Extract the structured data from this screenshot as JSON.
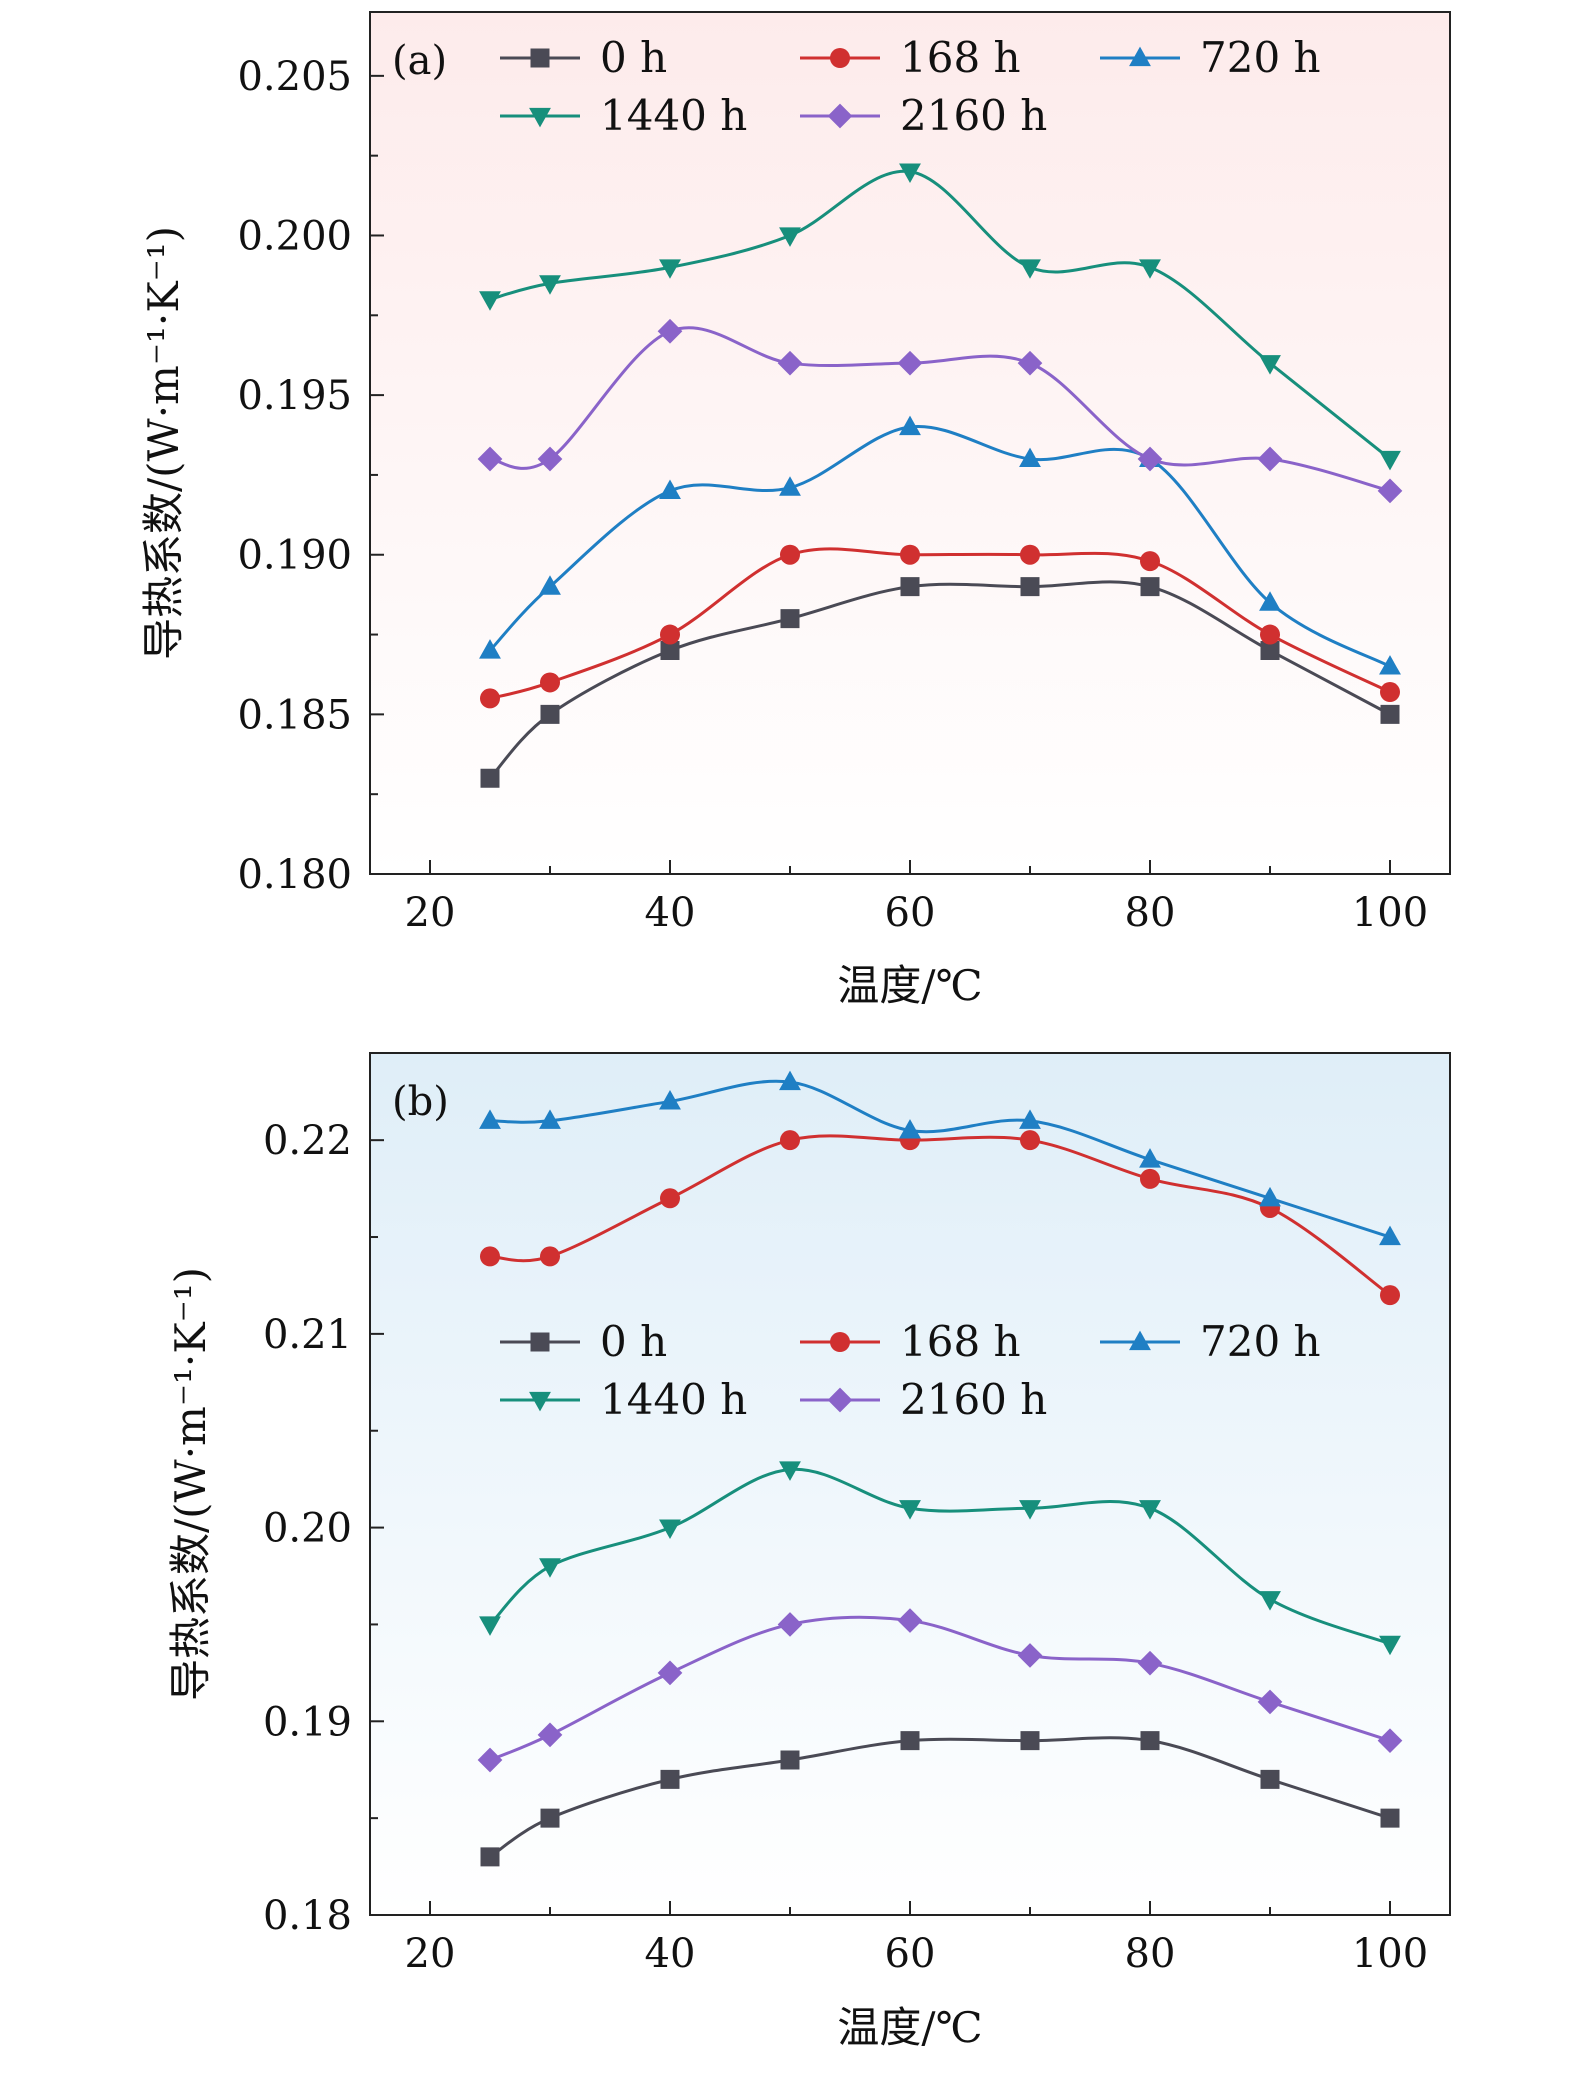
{
  "chart_data": [
    {
      "type": "line",
      "panel_label": "(a)",
      "xlabel": "温度/℃",
      "ylabel": "导热系数/(W·m⁻¹·K⁻¹)",
      "xlim": [
        15,
        105
      ],
      "ylim": [
        0.18,
        0.207
      ],
      "xticks": [
        20,
        40,
        60,
        80,
        100
      ],
      "xtick_labels": [
        "20",
        "40",
        "60",
        "80",
        "100"
      ],
      "yticks": [
        0.18,
        0.185,
        0.19,
        0.195,
        0.2,
        0.205
      ],
      "ytick_labels": [
        "0.180",
        "0.185",
        "0.190",
        "0.195",
        "0.200",
        "0.205"
      ],
      "background": {
        "top": "#fdebeb",
        "bottom": "#ffffff"
      },
      "legend_position": "top",
      "x": [
        25,
        30,
        40,
        50,
        60,
        70,
        80,
        90,
        100
      ],
      "series": [
        {
          "name": "0 h",
          "marker": "square",
          "color": "#4a4a55",
          "values": [
            0.183,
            0.185,
            0.187,
            0.188,
            0.189,
            0.189,
            0.189,
            0.187,
            0.185
          ]
        },
        {
          "name": "168 h",
          "marker": "circle",
          "color": "#d03030",
          "values": [
            0.1855,
            0.186,
            0.1875,
            0.19,
            0.19,
            0.19,
            0.1898,
            0.1875,
            0.1857
          ]
        },
        {
          "name": "720 h",
          "marker": "triangle-up",
          "color": "#1f7fc4",
          "values": [
            0.187,
            0.189,
            0.192,
            0.1921,
            0.194,
            0.193,
            0.193,
            0.1885,
            0.1865
          ]
        },
        {
          "name": "1440 h",
          "marker": "triangle-down",
          "color": "#178f7c",
          "values": [
            0.198,
            0.1985,
            0.199,
            0.2,
            0.202,
            0.199,
            0.199,
            0.196,
            0.193
          ]
        },
        {
          "name": "2160 h",
          "marker": "diamond",
          "color": "#8a63c9",
          "values": [
            0.193,
            0.193,
            0.197,
            0.196,
            0.196,
            0.196,
            0.193,
            0.193,
            0.192
          ]
        }
      ]
    },
    {
      "type": "line",
      "panel_label": "(b)",
      "xlabel": "温度/℃",
      "ylabel": "导热系数/(W·m⁻¹·K⁻¹)",
      "xlim": [
        15,
        105
      ],
      "ylim": [
        0.18,
        0.2245
      ],
      "xticks": [
        20,
        40,
        60,
        80,
        100
      ],
      "xtick_labels": [
        "20",
        "40",
        "60",
        "80",
        "100"
      ],
      "yticks": [
        0.18,
        0.19,
        0.2,
        0.21,
        0.22
      ],
      "ytick_labels": [
        "0.18",
        "0.19",
        "0.20",
        "0.21",
        "0.22"
      ],
      "background": {
        "top": "#dfeef8",
        "bottom": "#ffffff"
      },
      "legend_position": "center",
      "x": [
        25,
        30,
        40,
        50,
        60,
        70,
        80,
        90,
        100
      ],
      "series": [
        {
          "name": "0 h",
          "marker": "square",
          "color": "#4a4a55",
          "values": [
            0.183,
            0.185,
            0.187,
            0.188,
            0.189,
            0.189,
            0.189,
            0.187,
            0.185
          ]
        },
        {
          "name": "168 h",
          "marker": "circle",
          "color": "#d03030",
          "values": [
            0.214,
            0.214,
            0.217,
            0.22,
            0.22,
            0.22,
            0.218,
            0.2165,
            0.212
          ]
        },
        {
          "name": "720 h",
          "marker": "triangle-up",
          "color": "#1f7fc4",
          "values": [
            0.221,
            0.221,
            0.222,
            0.223,
            0.2205,
            0.221,
            0.219,
            0.217,
            0.215
          ]
        },
        {
          "name": "1440 h",
          "marker": "triangle-down",
          "color": "#178f7c",
          "values": [
            0.195,
            0.198,
            0.2,
            0.203,
            0.201,
            0.201,
            0.201,
            0.1963,
            0.194
          ]
        },
        {
          "name": "2160 h",
          "marker": "diamond",
          "color": "#8a63c9",
          "values": [
            0.188,
            0.1893,
            0.1925,
            0.195,
            0.1952,
            0.1934,
            0.193,
            0.191,
            0.189
          ]
        }
      ]
    }
  ]
}
